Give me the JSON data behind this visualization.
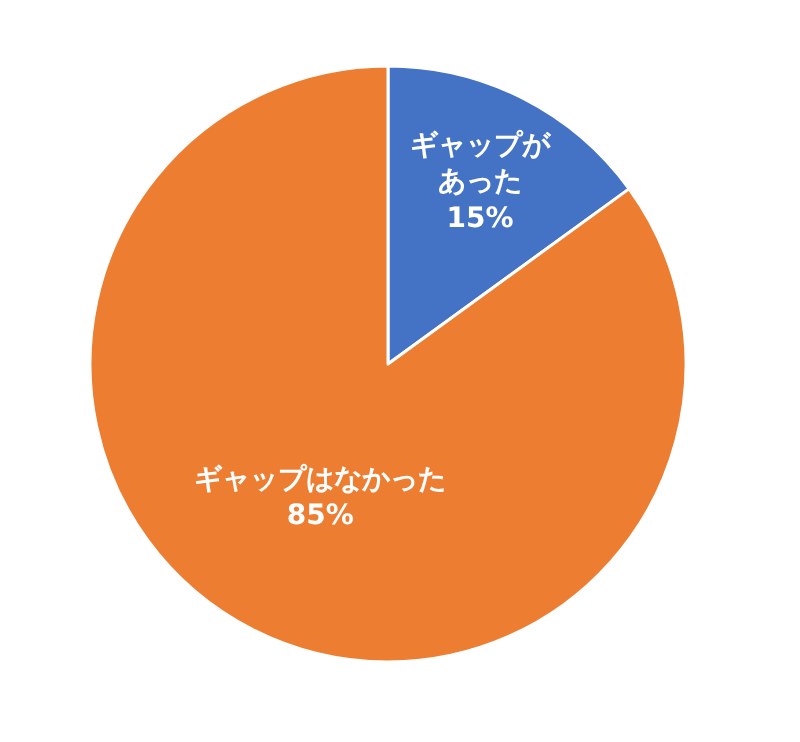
{
  "chart_data": {
    "type": "pie",
    "categories": [
      "ギャップがあった",
      "ギャップはなかった"
    ],
    "values": [
      15,
      85
    ],
    "colors": [
      "#4472c4",
      "#ed7d31"
    ],
    "value_labels": [
      "15%",
      "85%"
    ],
    "legend": false
  }
}
